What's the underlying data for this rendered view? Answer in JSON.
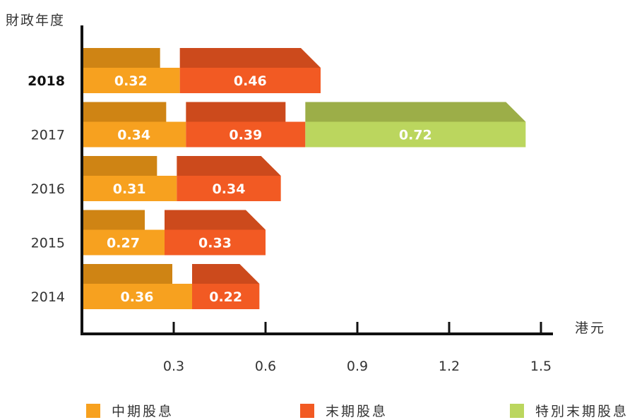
{
  "chart_data": {
    "type": "bar",
    "orientation": "horizontal",
    "stacked": true,
    "style": "3d",
    "ylabel": "財政年度",
    "xlabel": "港元",
    "categories": [
      "2018",
      "2017",
      "2016",
      "2015",
      "2014"
    ],
    "highlight_category": "2018",
    "xticks": [
      "0.3",
      "0.6",
      "0.9",
      "1.2",
      "1.5"
    ],
    "xlim": [
      0,
      1.5
    ],
    "grid": false,
    "legend_position": "bottom",
    "series": [
      {
        "name": "中期股息",
        "color": "#f7a11f",
        "top_color": "#cf8414",
        "values": [
          0.32,
          0.34,
          0.31,
          0.27,
          0.36
        ],
        "labels": [
          "0.32",
          "0.34",
          "0.31",
          "0.27",
          "0.36"
        ]
      },
      {
        "name": "末期股息",
        "color": "#f25a23",
        "top_color": "#cc4a1c",
        "values": [
          0.46,
          0.39,
          0.34,
          0.33,
          0.22
        ],
        "labels": [
          "0.46",
          "0.39",
          "0.34",
          "0.33",
          "0.22"
        ]
      },
      {
        "name": "特別末期股息",
        "color": "#bbd65e",
        "top_color": "#9cae48",
        "values": [
          null,
          0.72,
          null,
          null,
          null
        ],
        "labels": [
          null,
          "0.72",
          null,
          null,
          null
        ]
      }
    ]
  }
}
